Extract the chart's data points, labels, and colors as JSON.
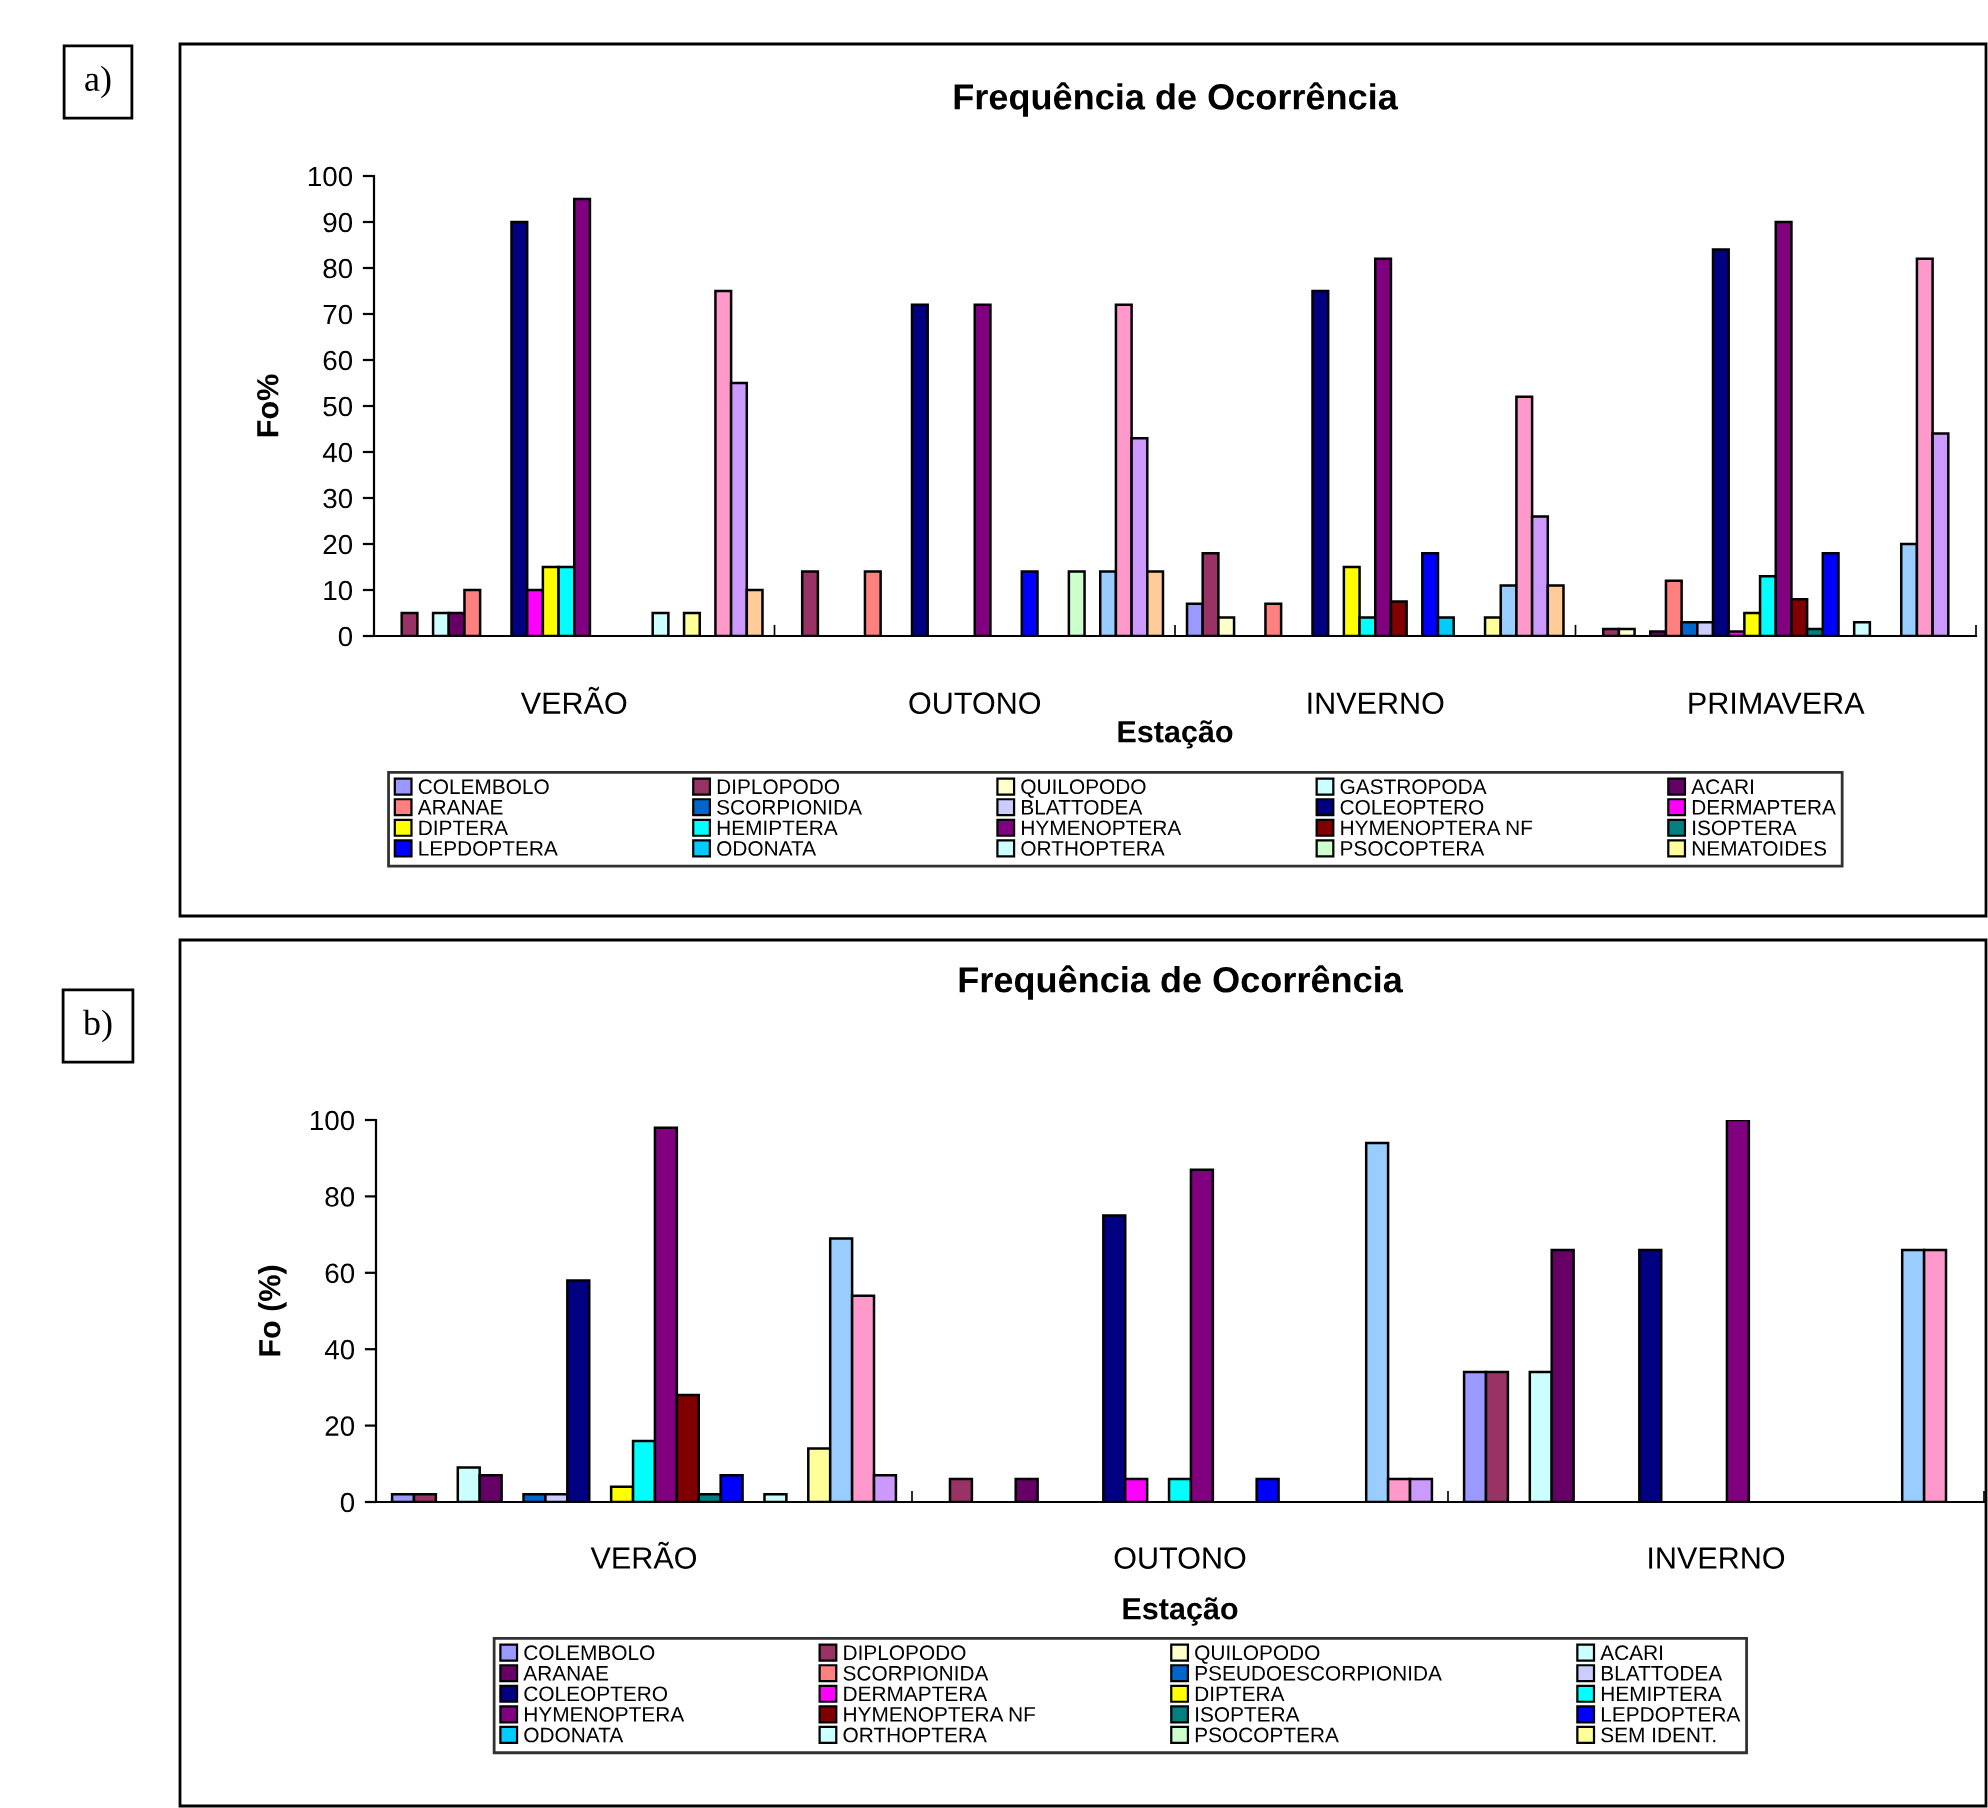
{
  "chart_data": [
    {
      "type": "bar",
      "title": "Frequência de Ocorrência",
      "xlabel": "Estação",
      "ylabel": "Fo%",
      "annotations": [
        "a)"
      ],
      "categories": [
        "VERÃO",
        "OUTONO",
        "INVERNO",
        "PRIMAVERA"
      ],
      "ylim": [
        0,
        100
      ],
      "yticks": [
        0,
        10,
        20,
        30,
        40,
        50,
        60,
        70,
        80,
        90,
        100
      ],
      "grid": false,
      "legend": "bottom",
      "series": [
        {
          "name": "COLEMBOLO",
          "color": "#9999ff",
          "values": [
            null,
            null,
            7,
            null
          ]
        },
        {
          "name": "DIPLOPODO",
          "color": "#993366",
          "values": [
            5,
            14,
            18,
            1.5
          ]
        },
        {
          "name": "QUILOPODO",
          "color": "#ffffcc",
          "values": [
            null,
            null,
            4,
            1.5
          ]
        },
        {
          "name": "GASTROPODA",
          "color": "#ccffff",
          "values": [
            5,
            null,
            null,
            null
          ]
        },
        {
          "name": "ACARI",
          "color": "#660066",
          "values": [
            5,
            null,
            null,
            1
          ]
        },
        {
          "name": "ARANAE",
          "color": "#ff8080",
          "values": [
            10,
            14,
            7,
            12
          ]
        },
        {
          "name": "SCORPIONIDA",
          "color": "#0066cc",
          "values": [
            null,
            null,
            null,
            3
          ]
        },
        {
          "name": "BLATTODEA",
          "color": "#ccccff",
          "values": [
            null,
            null,
            null,
            3
          ]
        },
        {
          "name": "COLEOPTERO",
          "color": "#000080",
          "values": [
            90,
            72,
            75,
            84
          ]
        },
        {
          "name": "DERMAPTERA",
          "color": "#ff00ff",
          "values": [
            10,
            null,
            null,
            1
          ]
        },
        {
          "name": "DIPTERA",
          "color": "#ffff00",
          "values": [
            15,
            null,
            15,
            5
          ]
        },
        {
          "name": "HEMIPTERA",
          "color": "#00ffff",
          "values": [
            15,
            null,
            4,
            13
          ]
        },
        {
          "name": "HYMENOPTERA",
          "color": "#800080",
          "values": [
            95,
            72,
            82,
            90
          ]
        },
        {
          "name": "HYMENOPTERA NF",
          "color": "#800000",
          "values": [
            null,
            null,
            7.5,
            8
          ]
        },
        {
          "name": "ISOPTERA",
          "color": "#008080",
          "values": [
            null,
            null,
            null,
            1.5
          ]
        },
        {
          "name": "LEPDOPTERA",
          "color": "#0000ff",
          "values": [
            null,
            14,
            18,
            18
          ]
        },
        {
          "name": "ODONATA",
          "color": "#00ccff",
          "values": [
            null,
            null,
            4,
            null
          ]
        },
        {
          "name": "ORTHOPTERA",
          "color": "#ccffff",
          "values": [
            5,
            null,
            null,
            3
          ]
        },
        {
          "name": "PSOCOPTERA",
          "color": "#ccffcc",
          "values": [
            null,
            14,
            null,
            null
          ]
        },
        {
          "name": "NEMATOIDES",
          "color": "#ffff99",
          "values": [
            5,
            null,
            4,
            null
          ]
        },
        {
          "color": "#99ccff",
          "values": [
            null,
            14,
            11,
            20
          ]
        },
        {
          "color": "#ff99cc",
          "values": [
            75,
            72,
            52,
            82
          ]
        },
        {
          "color": "#cc99ff",
          "values": [
            55,
            43,
            26,
            44
          ]
        },
        {
          "color": "#ffcc99",
          "values": [
            10,
            14,
            11,
            null
          ]
        }
      ]
    },
    {
      "type": "bar",
      "title": "Frequência de Ocorrência",
      "xlabel": "Estação",
      "ylabel": "Fo (%)",
      "annotations": [
        "b)"
      ],
      "categories": [
        "VERÃO",
        "OUTONO",
        "INVERNO"
      ],
      "ylim": [
        0,
        100
      ],
      "yticks": [
        0,
        20,
        40,
        60,
        80,
        100
      ],
      "grid": false,
      "legend": "bottom",
      "series": [
        {
          "name": "COLEMBOLO",
          "color": "#9999ff",
          "values": [
            2,
            null,
            34
          ]
        },
        {
          "name": "DIPLOPODO",
          "color": "#993366",
          "values": [
            2,
            6,
            34
          ]
        },
        {
          "name": "QUILOPODO",
          "color": "#ffffcc",
          "values": [
            null,
            null,
            null
          ]
        },
        {
          "name": "ACARI",
          "color": "#ccffff",
          "values": [
            9,
            null,
            34
          ]
        },
        {
          "name": "ARANAE",
          "color": "#660066",
          "values": [
            7,
            6,
            66
          ]
        },
        {
          "name": "SCORPIONIDA",
          "color": "#ff8080",
          "values": [
            null,
            null,
            null
          ]
        },
        {
          "name": "PSEUDOESCORPIONIDA",
          "color": "#0066cc",
          "values": [
            2,
            null,
            null
          ]
        },
        {
          "name": "BLATTODEA",
          "color": "#ccccff",
          "values": [
            2,
            null,
            null
          ]
        },
        {
          "name": "COLEOPTERO",
          "color": "#000080",
          "values": [
            58,
            75,
            66
          ]
        },
        {
          "name": "DERMAPTERA",
          "color": "#ff00ff",
          "values": [
            null,
            6,
            null
          ]
        },
        {
          "name": "DIPTERA",
          "color": "#ffff00",
          "values": [
            4,
            null,
            null
          ]
        },
        {
          "name": "HEMIPTERA",
          "color": "#00ffff",
          "values": [
            16,
            6,
            null
          ]
        },
        {
          "name": "HYMENOPTERA",
          "color": "#800080",
          "values": [
            98,
            87,
            100
          ]
        },
        {
          "name": "HYMENOPTERA NF",
          "color": "#800000",
          "values": [
            28,
            null,
            null
          ]
        },
        {
          "name": "ISOPTERA",
          "color": "#008080",
          "values": [
            2,
            null,
            null
          ]
        },
        {
          "name": "LEPDOPTERA",
          "color": "#0000ff",
          "values": [
            7,
            6,
            null
          ]
        },
        {
          "name": "ODONATA",
          "color": "#00ccff",
          "values": [
            null,
            null,
            null
          ]
        },
        {
          "name": "ORTHOPTERA",
          "color": "#ccffff",
          "values": [
            2,
            null,
            null
          ]
        },
        {
          "name": "PSOCOPTERA",
          "color": "#ccffcc",
          "values": [
            null,
            null,
            null
          ]
        },
        {
          "name": "SEM IDENT.",
          "color": "#ffff99",
          "values": [
            14,
            null,
            null
          ]
        },
        {
          "color": "#99ccff",
          "values": [
            69,
            94,
            66
          ]
        },
        {
          "color": "#ff99cc",
          "values": [
            54,
            6,
            66
          ]
        },
        {
          "color": "#cc99ff",
          "values": [
            7,
            6,
            null
          ]
        }
      ]
    }
  ]
}
